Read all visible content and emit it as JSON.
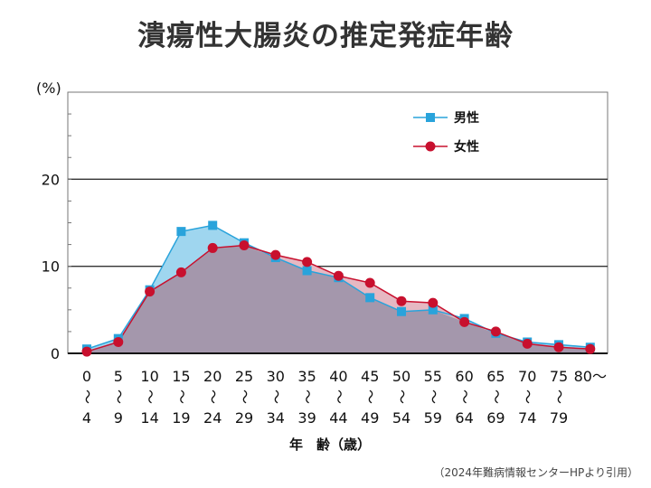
{
  "title": "潰瘍性大腸炎の推定発症年齢",
  "source_note": "（2024年難病情報センターHPより引用）",
  "colors": {
    "male": "#29a3db",
    "male_fill": "#9fd6ef",
    "female": "#c8102e",
    "female_fill": "#e6b8c2",
    "overlap": "#a497ac"
  },
  "chart_data": {
    "type": "area",
    "title": "潰瘍性大腸炎の推定発症年齢",
    "ylabel": "(%)",
    "xlabel": "年　齢（歳）",
    "ylim": [
      0,
      30
    ],
    "yticks": [
      0,
      10,
      20
    ],
    "grid": true,
    "legend_position": "top-right",
    "categories": [
      {
        "top": "0",
        "bottom": "4"
      },
      {
        "top": "5",
        "bottom": "9"
      },
      {
        "top": "10",
        "bottom": "14"
      },
      {
        "top": "15",
        "bottom": "19"
      },
      {
        "top": "20",
        "bottom": "24"
      },
      {
        "top": "25",
        "bottom": "29"
      },
      {
        "top": "30",
        "bottom": "34"
      },
      {
        "top": "35",
        "bottom": "39"
      },
      {
        "top": "40",
        "bottom": "44"
      },
      {
        "top": "45",
        "bottom": "49"
      },
      {
        "top": "50",
        "bottom": "54"
      },
      {
        "top": "55",
        "bottom": "59"
      },
      {
        "top": "60",
        "bottom": "64"
      },
      {
        "top": "65",
        "bottom": "69"
      },
      {
        "top": "70",
        "bottom": "74"
      },
      {
        "top": "75",
        "bottom": "79"
      },
      {
        "top": "80～",
        "bottom": ""
      }
    ],
    "range_mark": "～",
    "series": [
      {
        "name": "男性",
        "marker": "square",
        "values": [
          0.5,
          1.7,
          7.3,
          14.0,
          14.7,
          12.7,
          11.0,
          9.5,
          8.7,
          6.4,
          4.8,
          5.0,
          4.0,
          2.3,
          1.3,
          1.0,
          0.7
        ]
      },
      {
        "name": "女性",
        "marker": "circle",
        "values": [
          0.2,
          1.3,
          7.1,
          9.3,
          12.1,
          12.4,
          11.3,
          10.5,
          8.9,
          8.1,
          6.0,
          5.8,
          3.6,
          2.5,
          1.1,
          0.7,
          0.5
        ]
      }
    ]
  }
}
